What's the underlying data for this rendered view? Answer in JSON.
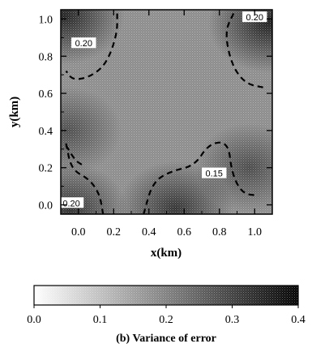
{
  "chart_data": {
    "type": "heatmap",
    "xlabel": "x(km)",
    "ylabel": "y(km)",
    "xlim": [
      -0.1,
      1.1
    ],
    "ylim": [
      -0.05,
      1.05
    ],
    "x_ticks": [
      "0.0",
      "0.2",
      "0.4",
      "0.6",
      "0.8",
      "1.0"
    ],
    "y_ticks": [
      "0.0",
      "0.2",
      "0.4",
      "0.6",
      "0.8",
      "1.0"
    ],
    "colorbar": {
      "range": [
        0.0,
        0.4
      ],
      "ticks": [
        "0.0",
        "0.1",
        "0.2",
        "0.3",
        "0.4"
      ],
      "low_color": "#ffffff",
      "high_color": "#000000"
    },
    "caption": "(b) Variance of error",
    "contours": [
      {
        "label": "0.20",
        "level": 0.2,
        "label_at": [
          0.03,
          0.87
        ],
        "points": [
          [
            0.22,
            1.03
          ],
          [
            0.22,
            0.92
          ],
          [
            0.16,
            0.76
          ],
          [
            0.07,
            0.69
          ],
          [
            -0.03,
            0.67
          ],
          [
            -0.07,
            0.72
          ]
        ]
      },
      {
        "label": "0.20",
        "level": 0.2,
        "label_at": [
          1.0,
          1.01
        ],
        "points": [
          [
            0.88,
            1.03
          ],
          [
            0.83,
            0.93
          ],
          [
            0.87,
            0.75
          ],
          [
            0.95,
            0.65
          ],
          [
            1.06,
            0.63
          ]
        ]
      },
      {
        "label": "0.15",
        "level": 0.15,
        "label_at": [
          0.77,
          0.17
        ],
        "points": [
          [
            0.37,
            -0.05
          ],
          [
            0.42,
            0.12
          ],
          [
            0.52,
            0.18
          ],
          [
            0.66,
            0.21
          ],
          [
            0.74,
            0.33
          ],
          [
            0.85,
            0.34
          ],
          [
            0.87,
            0.17
          ],
          [
            0.93,
            0.06
          ],
          [
            1.02,
            0.05
          ]
        ]
      },
      {
        "label": "0.20",
        "level": 0.2,
        "label_at": [
          -0.04,
          0.01
        ],
        "points": [
          [
            -0.07,
            0.33
          ],
          [
            -0.04,
            0.19
          ],
          [
            0.06,
            0.14
          ],
          [
            0.12,
            0.06
          ],
          [
            0.14,
            -0.05
          ]
        ]
      },
      {
        "label": "",
        "level": 0.2,
        "label_at": null,
        "points": [
          [
            -0.07,
            0.32
          ],
          [
            -0.02,
            0.24
          ],
          [
            0.03,
            0.21
          ]
        ]
      }
    ],
    "dark_regions": [
      {
        "x": -0.08,
        "y": 1.02,
        "value": 0.32
      },
      {
        "x": 1.08,
        "y": 0.98,
        "value": 0.33
      },
      {
        "x": 0.55,
        "y": -0.02,
        "value": 0.27
      },
      {
        "x": -0.05,
        "y": -0.03,
        "value": 0.28
      },
      {
        "x": 0.97,
        "y": 0.2,
        "value": 0.2
      },
      {
        "x": -0.06,
        "y": 0.4,
        "value": 0.19
      }
    ]
  }
}
